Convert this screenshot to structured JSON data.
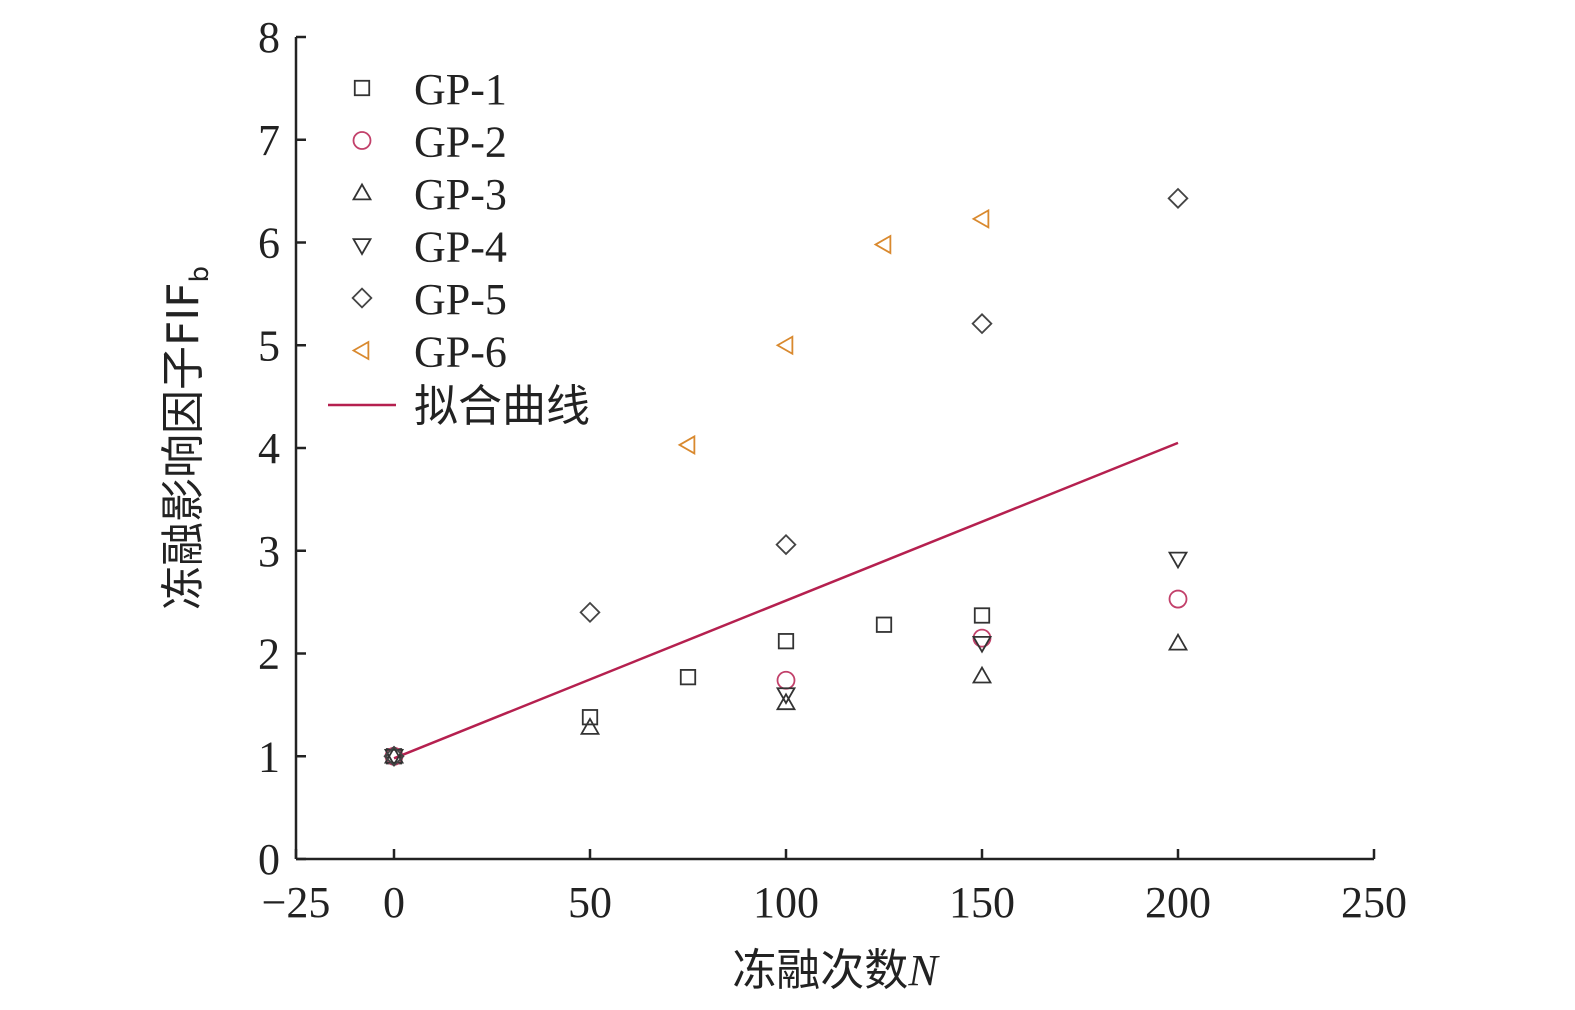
{
  "chart_data": {
    "type": "scatter",
    "title": "",
    "xlabel": "冻融次数",
    "xlabel_var": "N",
    "ylabel": "冻融影响因子FIF",
    "ylabel_sub": "b",
    "xlim": [
      -25,
      250
    ],
    "ylim": [
      0,
      8
    ],
    "x_ticks": [
      -25,
      0,
      50,
      100,
      150,
      200,
      250
    ],
    "x_tick_labels": [
      "−25",
      "0",
      "50",
      "100",
      "150",
      "200",
      "250"
    ],
    "y_ticks": [
      0,
      1,
      2,
      3,
      4,
      5,
      6,
      7,
      8
    ],
    "y_tick_labels": [
      "0",
      "1",
      "2",
      "3",
      "4",
      "5",
      "6",
      "7",
      "8"
    ],
    "grid": false,
    "legend_position": "top-left",
    "series": [
      {
        "name": "GP-1",
        "marker": "square",
        "color": "#333333",
        "points": [
          [
            0,
            1.0
          ],
          [
            50,
            1.38
          ],
          [
            75,
            1.77
          ],
          [
            100,
            2.12
          ],
          [
            125,
            2.28
          ],
          [
            150,
            2.37
          ]
        ]
      },
      {
        "name": "GP-2",
        "marker": "circle",
        "color": "#c2406a",
        "points": [
          [
            0,
            1.0
          ],
          [
            100,
            1.74
          ],
          [
            150,
            2.15
          ],
          [
            200,
            2.53
          ]
        ]
      },
      {
        "name": "GP-3",
        "marker": "triangle-up",
        "color": "#333333",
        "points": [
          [
            0,
            1.0
          ],
          [
            50,
            1.28
          ],
          [
            100,
            1.52
          ],
          [
            150,
            1.78
          ],
          [
            200,
            2.1
          ]
        ]
      },
      {
        "name": "GP-4",
        "marker": "triangle-down",
        "color": "#333333",
        "points": [
          [
            0,
            1.0
          ],
          [
            100,
            1.6
          ],
          [
            150,
            2.1
          ],
          [
            200,
            2.92
          ]
        ]
      },
      {
        "name": "GP-5",
        "marker": "diamond",
        "color": "#444444",
        "points": [
          [
            0,
            1.0
          ],
          [
            50,
            2.4
          ],
          [
            100,
            3.06
          ],
          [
            150,
            5.21
          ],
          [
            200,
            6.43
          ]
        ]
      },
      {
        "name": "GP-6",
        "marker": "triangle-left",
        "color": "#d9892e",
        "points": [
          [
            75,
            4.03
          ],
          [
            100,
            5.0
          ],
          [
            125,
            5.98
          ],
          [
            150,
            6.23
          ]
        ]
      }
    ],
    "fit_line": {
      "name": "拟合曲线",
      "color": "#b5204f",
      "points": [
        [
          0,
          0.98
        ],
        [
          200,
          4.05
        ]
      ]
    }
  }
}
